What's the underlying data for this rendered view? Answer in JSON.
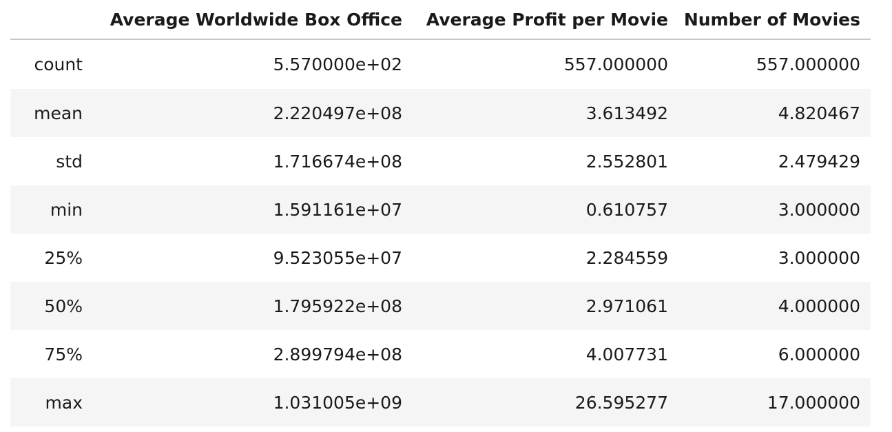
{
  "table": {
    "columns": [
      "Average Worldwide Box Office",
      "Average Profit per Movie",
      "Number of Movies"
    ],
    "rows": [
      {
        "label": "count",
        "values": [
          "5.570000e+02",
          "557.000000",
          "557.000000"
        ]
      },
      {
        "label": "mean",
        "values": [
          "2.220497e+08",
          "3.613492",
          "4.820467"
        ]
      },
      {
        "label": "std",
        "values": [
          "1.716674e+08",
          "2.552801",
          "2.479429"
        ]
      },
      {
        "label": "min",
        "values": [
          "1.591161e+07",
          "0.610757",
          "3.000000"
        ]
      },
      {
        "label": "25%",
        "values": [
          "9.523055e+07",
          "2.284559",
          "3.000000"
        ]
      },
      {
        "label": "50%",
        "values": [
          "1.795922e+08",
          "2.971061",
          "4.000000"
        ]
      },
      {
        "label": "75%",
        "values": [
          "2.899794e+08",
          "4.007731",
          "6.000000"
        ]
      },
      {
        "label": "max",
        "values": [
          "1.031005e+09",
          "26.595277",
          "17.000000"
        ]
      }
    ]
  }
}
